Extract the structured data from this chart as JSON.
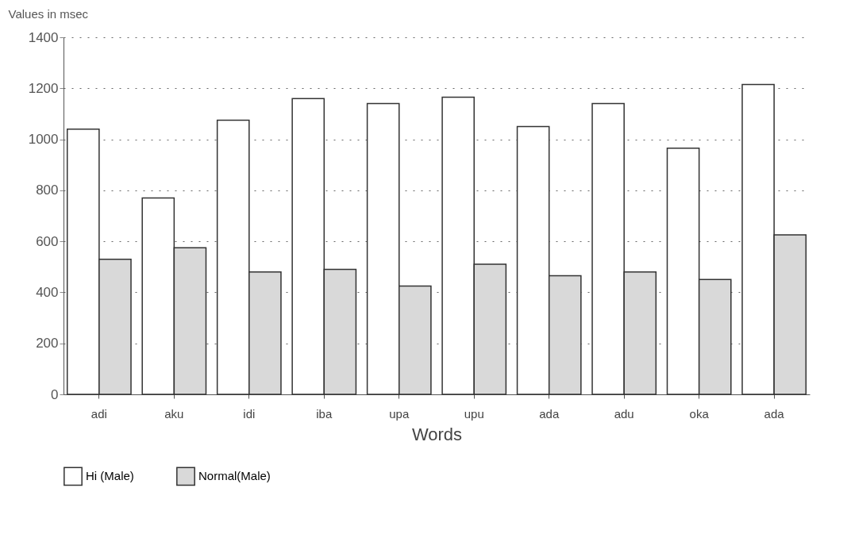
{
  "chart_data": {
    "type": "bar",
    "ylabel": "Values in msec",
    "xlabel": "Words",
    "categories": [
      "adi",
      "aku",
      "idi",
      "iba",
      "upa",
      "upu",
      "ada",
      "adu",
      "oka",
      "ada"
    ],
    "series": [
      {
        "name": "Hi (Male)",
        "color": "#ffffff",
        "values": [
          1040,
          770,
          1075,
          1160,
          1140,
          1165,
          1050,
          1140,
          965,
          1215
        ]
      },
      {
        "name": "Normal(Male)",
        "color": "#d9d9d9",
        "values": [
          530,
          575,
          480,
          490,
          425,
          510,
          465,
          480,
          450,
          625
        ]
      }
    ],
    "ylim": [
      0,
      1400
    ],
    "yticks": [
      0,
      200,
      400,
      600,
      800,
      1000,
      1200,
      1400
    ],
    "grid": "y",
    "legend": "bottom"
  }
}
